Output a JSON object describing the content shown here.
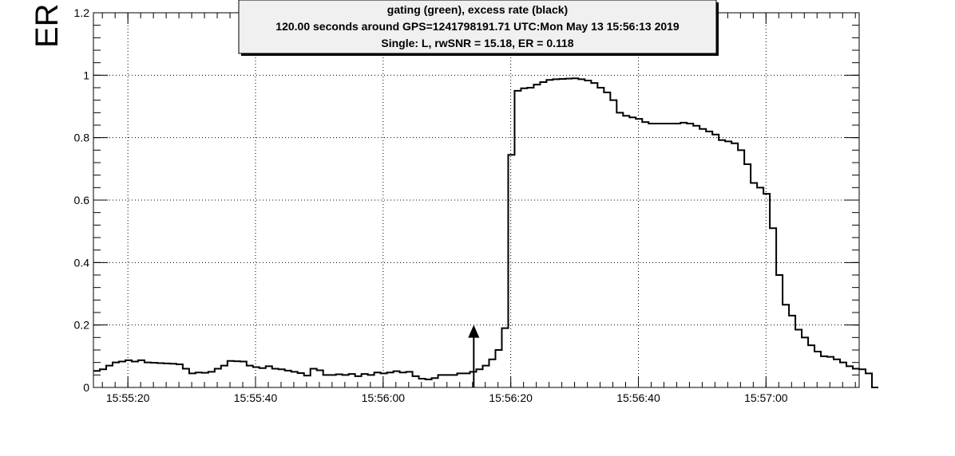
{
  "chart_data": {
    "type": "line",
    "style": "step",
    "title_lines": [
      "gating (green), excess rate (black)",
      "120.00 seconds around GPS=1241798191.71 UTC:Mon May 13 15:56:13 2019",
      "Single: L, rwSNR = 15.18, ER = 0.118"
    ],
    "xlabel": "",
    "ylabel": "ER",
    "x_axis_time": true,
    "x_ticks": [
      {
        "t": 20,
        "label": "15:55:20"
      },
      {
        "t": 40,
        "label": "15:55:40"
      },
      {
        "t": 60,
        "label": "15:56:00"
      },
      {
        "t": 80,
        "label": "15:56:20"
      },
      {
        "t": 100,
        "label": "15:56:40"
      },
      {
        "t": 120,
        "label": "15:57:00"
      }
    ],
    "xlim_seconds_after_15_55_00": [
      14.6,
      134.6
    ],
    "ylim": [
      0,
      1.2
    ],
    "y_ticks": [
      {
        "v": 0,
        "label": "0"
      },
      {
        "v": 0.2,
        "label": "0.2"
      },
      {
        "v": 0.4,
        "label": "0.4"
      },
      {
        "v": 0.6,
        "label": "0.6"
      },
      {
        "v": 0.8,
        "label": "0.8"
      },
      {
        "v": 1,
        "label": "1"
      },
      {
        "v": 1.2,
        "label": "1.2"
      }
    ],
    "grid": true,
    "series": [
      {
        "color": "#000000",
        "bin_width_seconds": 1,
        "x_start_seconds_after_15_55_00": 14.6,
        "values": [
          0.053,
          0.058,
          0.07,
          0.08,
          0.083,
          0.087,
          0.083,
          0.087,
          0.08,
          0.079,
          0.078,
          0.077,
          0.076,
          0.074,
          0.06,
          0.045,
          0.048,
          0.047,
          0.05,
          0.06,
          0.07,
          0.085,
          0.084,
          0.083,
          0.07,
          0.065,
          0.062,
          0.068,
          0.06,
          0.058,
          0.054,
          0.05,
          0.046,
          0.038,
          0.06,
          0.055,
          0.04,
          0.04,
          0.042,
          0.04,
          0.043,
          0.036,
          0.043,
          0.04,
          0.048,
          0.045,
          0.048,
          0.052,
          0.048,
          0.05,
          0.036,
          0.028,
          0.026,
          0.03,
          0.04,
          0.04,
          0.04,
          0.045,
          0.045,
          0.05,
          0.058,
          0.07,
          0.09,
          0.12,
          0.19,
          0.745,
          0.95,
          0.958,
          0.96,
          0.97,
          0.978,
          0.985,
          0.987,
          0.988,
          0.989,
          0.99,
          0.987,
          0.983,
          0.975,
          0.96,
          0.945,
          0.92,
          0.88,
          0.87,
          0.865,
          0.86,
          0.85,
          0.845,
          0.845,
          0.845,
          0.845,
          0.845,
          0.848,
          0.845,
          0.838,
          0.828,
          0.82,
          0.81,
          0.792,
          0.788,
          0.782,
          0.76,
          0.715,
          0.655,
          0.64,
          0.62,
          0.51,
          0.36,
          0.265,
          0.23,
          0.185,
          0.16,
          0.135,
          0.115,
          0.1,
          0.098,
          0.09,
          0.08,
          0.068,
          0.06,
          0.058,
          0.045,
          0.0
        ]
      }
    ],
    "annotations": [
      {
        "type": "arrow",
        "x_seconds_after_15_55_00": 74.2,
        "y_from": 0,
        "y_to": 0.2
      }
    ]
  }
}
